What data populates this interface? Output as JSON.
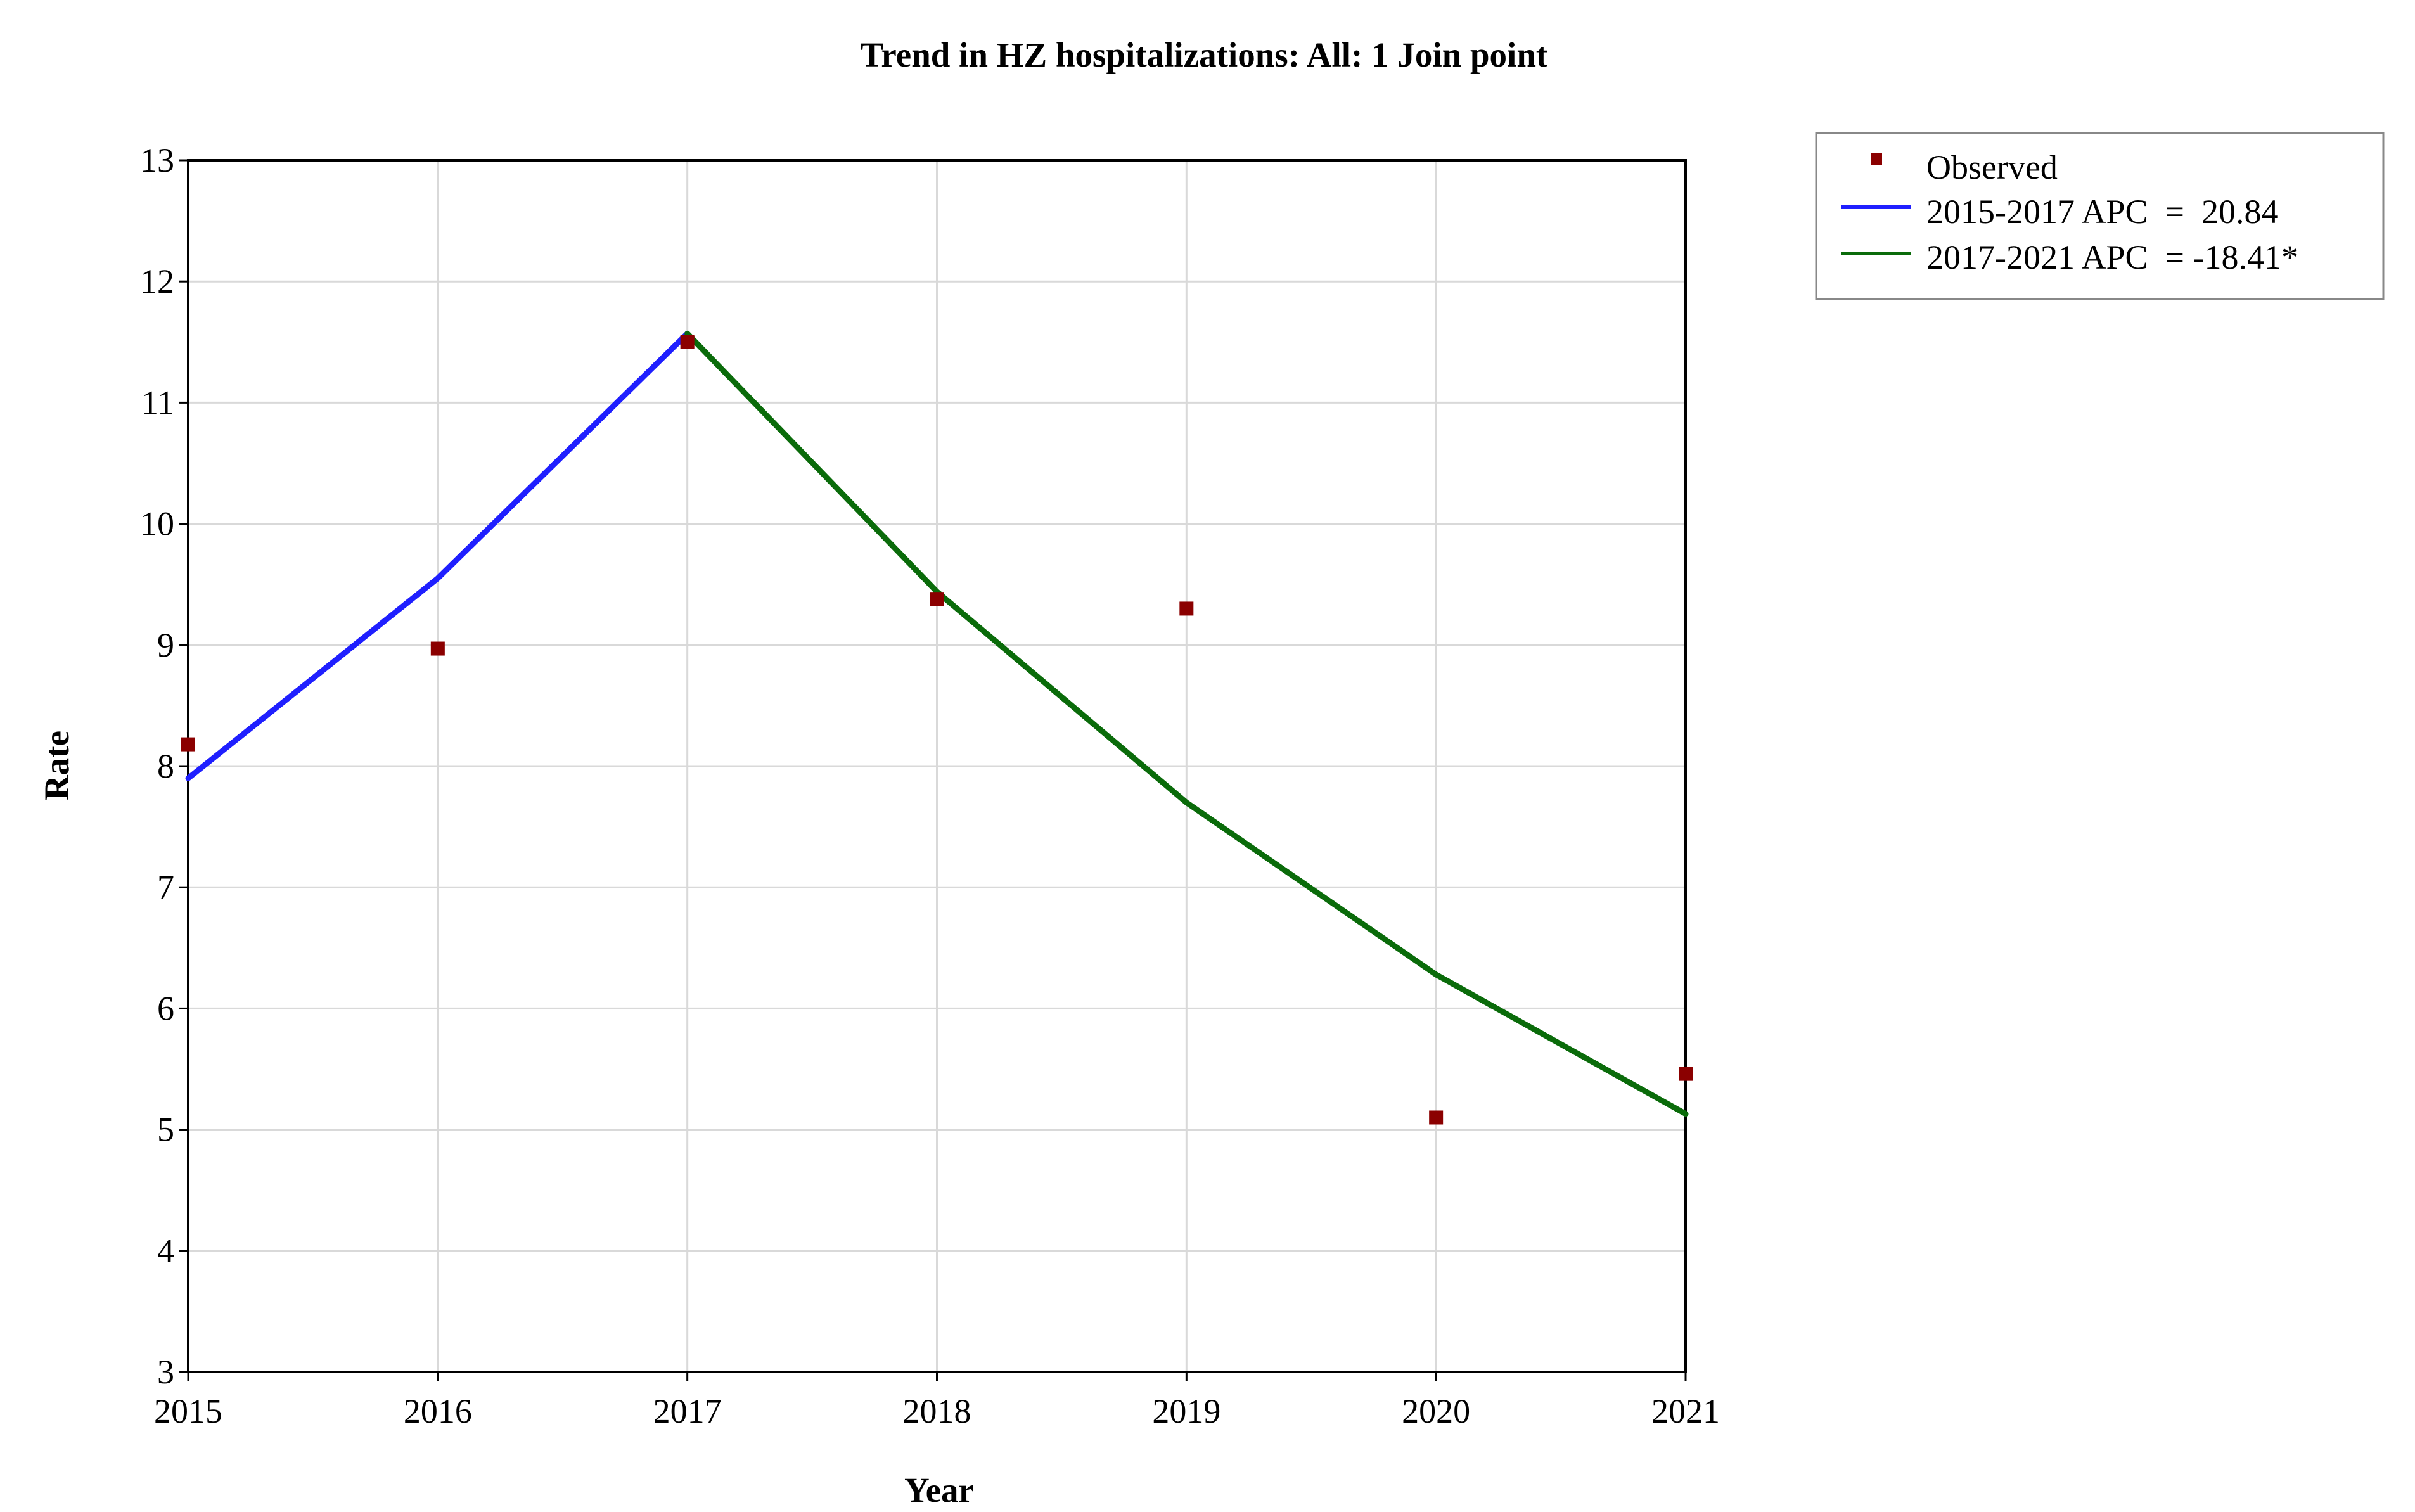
{
  "chart_data": {
    "type": "line",
    "title": "Trend in HZ hospitalizations: All: 1 Join point",
    "xlabel": "Year",
    "ylabel": "Rate",
    "xlim": [
      2015,
      2021
    ],
    "ylim": [
      3,
      13
    ],
    "x_ticks": [
      "2015",
      "2016",
      "2017",
      "2018",
      "2019",
      "2020",
      "2021"
    ],
    "y_ticks": [
      "3",
      "4",
      "5",
      "6",
      "7",
      "8",
      "9",
      "10",
      "11",
      "12",
      "13"
    ],
    "grid": true,
    "legend_position": "right-top, outside plot",
    "observed": {
      "name": "Observed",
      "color": "#8b0000",
      "x": [
        2015,
        2016,
        2017,
        2018,
        2019,
        2020,
        2021
      ],
      "y": [
        8.18,
        8.97,
        11.5,
        9.38,
        9.3,
        5.1,
        5.46
      ]
    },
    "series": [
      {
        "name": "2015-2017 APC  =  20.84",
        "color": "#1f1fff",
        "x": [
          2015,
          2016,
          2017
        ],
        "y": [
          7.9,
          9.55,
          11.57
        ]
      },
      {
        "name": "2017-2021 APC  = -18.41*",
        "color": "#0a6b0a",
        "x": [
          2017,
          2018,
          2019,
          2020,
          2021
        ],
        "y": [
          11.57,
          9.44,
          7.7,
          6.28,
          5.13
        ]
      }
    ]
  }
}
